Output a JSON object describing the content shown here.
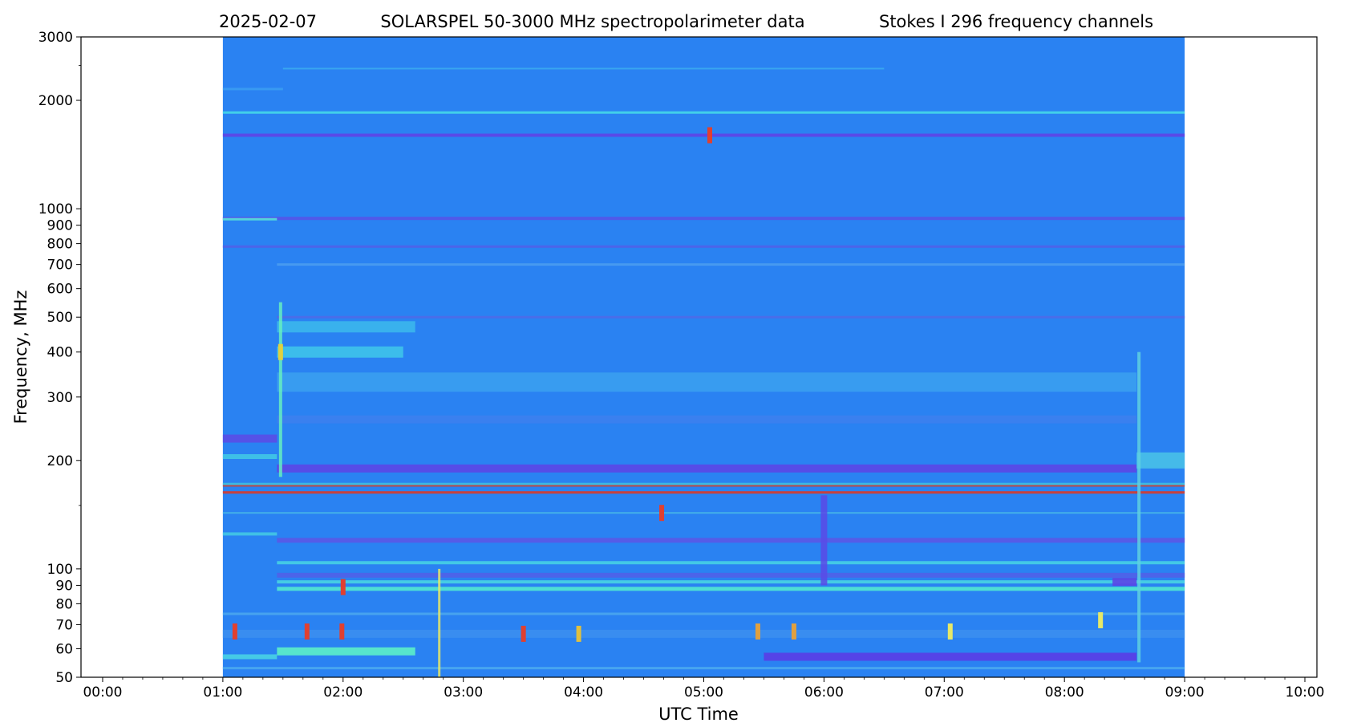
{
  "title_parts": [
    "2025-02-07",
    "SOLARSPEL   50-3000 MHz spectropolarimeter data",
    "Stokes I   296 frequency channels"
  ],
  "chart_data": {
    "type": "heatmap",
    "title": "2025-02-07      SOLARSPEL   50-3000 MHz spectropolarimeter data      Stokes I   296 frequency channels",
    "xlabel": "UTC Time",
    "ylabel": "Frequency, MHz",
    "x_range_hours": [
      -0.18,
      10.1
    ],
    "y_range_mhz": [
      50,
      3000
    ],
    "y_scale": "log",
    "data_extent_hours": [
      1.0,
      9.0
    ],
    "x_ticks": [
      {
        "value": 0,
        "label": "00:00"
      },
      {
        "value": 1,
        "label": "01:00"
      },
      {
        "value": 2,
        "label": "02:00"
      },
      {
        "value": 3,
        "label": "03:00"
      },
      {
        "value": 4,
        "label": "04:00"
      },
      {
        "value": 5,
        "label": "05:00"
      },
      {
        "value": 6,
        "label": "06:00"
      },
      {
        "value": 7,
        "label": "07:00"
      },
      {
        "value": 8,
        "label": "08:00"
      },
      {
        "value": 9,
        "label": "09:00"
      },
      {
        "value": 10,
        "label": "10:00"
      }
    ],
    "y_ticks": [
      {
        "value": 50,
        "label": "50"
      },
      {
        "value": 60,
        "label": "60"
      },
      {
        "value": 70,
        "label": "70"
      },
      {
        "value": 80,
        "label": "80"
      },
      {
        "value": 90,
        "label": "90"
      },
      {
        "value": 100,
        "label": "100"
      },
      {
        "value": 200,
        "label": "200"
      },
      {
        "value": 300,
        "label": "300"
      },
      {
        "value": 400,
        "label": "400"
      },
      {
        "value": 500,
        "label": "500"
      },
      {
        "value": 600,
        "label": "600"
      },
      {
        "value": 700,
        "label": "700"
      },
      {
        "value": 800,
        "label": "800"
      },
      {
        "value": 900,
        "label": "900"
      },
      {
        "value": 1000,
        "label": "1000"
      },
      {
        "value": 2000,
        "label": "2000"
      },
      {
        "value": 3000,
        "label": "3000"
      }
    ],
    "y_minor_ticks": [
      150,
      2500
    ],
    "background_color": "#2a82f2",
    "bands": [
      {
        "f": 2450,
        "t0": 1.5,
        "t1": 6.5,
        "color": "#3aa8f0",
        "w": 2
      },
      {
        "f": 2150,
        "t0": 1.0,
        "t1": 1.5,
        "color": "#3a9cf2",
        "w": 3
      },
      {
        "f": 1850,
        "t0": 1.0,
        "t1": 9.0,
        "color": "#45d8e8",
        "w": 3
      },
      {
        "f": 1600,
        "t0": 1.0,
        "t1": 9.0,
        "color": "#5f43e6",
        "w": 4
      },
      {
        "f": 940,
        "t0": 1.0,
        "t1": 9.0,
        "color": "#5554e8",
        "w": 4
      },
      {
        "f": 935,
        "t0": 1.0,
        "t1": 1.45,
        "color": "#55e0d8",
        "w": 3
      },
      {
        "f": 785,
        "t0": 1.0,
        "t1": 9.0,
        "color": "#5060e8",
        "w": 3
      },
      {
        "f": 700,
        "t0": 1.45,
        "t1": 9.0,
        "color": "#4a9cf0",
        "w": 3
      },
      {
        "f": 500,
        "t0": 1.45,
        "t1": 9.0,
        "color": "#4e6ae8",
        "w": 3
      },
      {
        "f": 470,
        "t0": 1.45,
        "t1": 2.6,
        "color": "#3bb6ec",
        "w": 14
      },
      {
        "f": 400,
        "t0": 1.45,
        "t1": 2.5,
        "color": "#3ec3ea",
        "w": 14
      },
      {
        "f": 330,
        "t0": 1.45,
        "t1": 8.6,
        "color": "#3a9ef0",
        "w": 24
      },
      {
        "f": 260,
        "t0": 1.45,
        "t1": 8.6,
        "color": "#3c7fee",
        "w": 10
      },
      {
        "f": 230,
        "t0": 1.0,
        "t1": 1.45,
        "color": "#5a4de6",
        "w": 10
      },
      {
        "f": 205,
        "t0": 1.0,
        "t1": 1.45,
        "color": "#40c6e6",
        "w": 6
      },
      {
        "f": 190,
        "t0": 1.45,
        "t1": 8.6,
        "color": "#5b46e6",
        "w": 10
      },
      {
        "f": 200,
        "t0": 8.6,
        "t1": 9.0,
        "color": "#48c0e8",
        "w": 20
      },
      {
        "f": 172,
        "t0": 1.0,
        "t1": 9.0,
        "color": "#3fbfe0",
        "w": 3
      },
      {
        "f": 163,
        "t0": 1.0,
        "t1": 9.0,
        "color": "#d83a2a",
        "w": 3
      },
      {
        "f": 170,
        "t0": 1.0,
        "t1": 9.0,
        "color": "#c84038",
        "w": 2
      },
      {
        "f": 143,
        "t0": 1.0,
        "t1": 9.0,
        "color": "#46b4e8",
        "w": 2
      },
      {
        "f": 125,
        "t0": 1.0,
        "t1": 1.45,
        "color": "#42c6e4",
        "w": 4
      },
      {
        "f": 120,
        "t0": 1.45,
        "t1": 9.0,
        "color": "#5a58e6",
        "w": 6
      },
      {
        "f": 104,
        "t0": 1.45,
        "t1": 9.0,
        "color": "#46d0e4",
        "w": 4
      },
      {
        "f": 96,
        "t0": 1.45,
        "t1": 9.0,
        "color": "#5060e8",
        "w": 6
      },
      {
        "f": 92,
        "t0": 1.45,
        "t1": 9.0,
        "color": "#48d4e2",
        "w": 4
      },
      {
        "f": 88,
        "t0": 1.45,
        "t1": 9.0,
        "color": "#52e8d0",
        "w": 5
      },
      {
        "f": 92,
        "t0": 8.4,
        "t1": 8.6,
        "color": "#5b46e6",
        "w": 10
      },
      {
        "f": 75,
        "t0": 1.0,
        "t1": 9.0,
        "color": "#4aa6ee",
        "w": 3
      },
      {
        "f": 66,
        "t0": 1.0,
        "t1": 9.0,
        "color": "#3b8ef0",
        "w": 10
      },
      {
        "f": 59,
        "t0": 1.45,
        "t1": 2.6,
        "color": "#5cf0c8",
        "w": 10
      },
      {
        "f": 57,
        "t0": 1.0,
        "t1": 1.45,
        "color": "#48d2e4",
        "w": 6
      },
      {
        "f": 57,
        "t0": 5.5,
        "t1": 8.6,
        "color": "#5a3ce6",
        "w": 10
      },
      {
        "f": 53,
        "t0": 1.0,
        "t1": 9.0,
        "color": "#4aa8ee",
        "w": 3
      }
    ],
    "columns": [
      {
        "t": 1.48,
        "f0": 180,
        "f1": 550,
        "color": "#66f0c0",
        "w": 4
      },
      {
        "t": 2.8,
        "f0": 50,
        "f1": 100,
        "color": "#e6e868",
        "w": 3
      },
      {
        "t": 6.0,
        "f0": 90,
        "f1": 160,
        "color": "#5a4ae6",
        "w": 8
      },
      {
        "t": 8.62,
        "f0": 55,
        "f1": 400,
        "color": "#5fd0e0",
        "w": 4
      }
    ],
    "bursts": [
      {
        "t": 1.1,
        "f": 67,
        "color": "#e04030"
      },
      {
        "t": 1.48,
        "f": 400,
        "color": "#e0d040"
      },
      {
        "t": 1.7,
        "f": 67,
        "color": "#e04030"
      },
      {
        "t": 1.99,
        "f": 67,
        "color": "#e04030"
      },
      {
        "t": 2.0,
        "f": 89,
        "color": "#e04030"
      },
      {
        "t": 3.5,
        "f": 66,
        "color": "#e04030"
      },
      {
        "t": 3.96,
        "f": 66,
        "color": "#e0c040"
      },
      {
        "t": 5.05,
        "f": 1600,
        "color": "#e04030"
      },
      {
        "t": 4.65,
        "f": 143,
        "color": "#e04030"
      },
      {
        "t": 5.45,
        "f": 67,
        "color": "#e0a040"
      },
      {
        "t": 5.75,
        "f": 67,
        "color": "#e0a040"
      },
      {
        "t": 7.05,
        "f": 67,
        "color": "#e6e868"
      },
      {
        "t": 8.3,
        "f": 72,
        "color": "#e6e868"
      }
    ]
  }
}
